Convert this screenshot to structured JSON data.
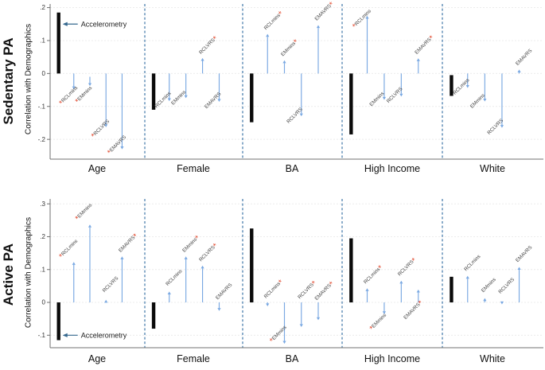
{
  "colors": {
    "arrow": "#79a8e2",
    "accel_bar": "#0a0a0a",
    "star": "#e04428",
    "separator": "#4b7fae",
    "annotation_arrow": "#35688e",
    "axis": "#707070",
    "grid": "#ececec",
    "tick_text": "#333333",
    "label_text": "#444444"
  },
  "chart_data": [
    {
      "type": "range-arrow",
      "row_label": "Sedentary PA",
      "ylabel": "Correlation with Demographics",
      "categories": [
        "Age",
        "Female",
        "BA",
        "High Income",
        "White"
      ],
      "ticks": [
        ".2",
        ".1",
        "0",
        "-.1",
        "-.2"
      ],
      "tick_values": [
        0.2,
        0.1,
        0,
        -0.1,
        -0.2
      ],
      "ylim": [
        0.211,
        -0.26
      ],
      "grid": true,
      "annotation": {
        "text": "Accelerometry",
        "y": 0.15,
        "category": "Age"
      },
      "series_order": [
        "Accelerometry",
        "RCLmins",
        "EMmins",
        "RCLVRS",
        "EMAVRS"
      ],
      "groups": [
        {
          "category": "Age",
          "accelerometry": {
            "from": 0,
            "to": 0.185
          },
          "measures": [
            {
              "name": "RCLmins",
              "from": 0,
              "to": -0.048,
              "sig": true,
              "star": "pre",
              "label_y": -0.095
            },
            {
              "name": "EMmins",
              "from": -0.01,
              "to": -0.038,
              "sig": true,
              "star": "pre",
              "label_y": -0.09
            },
            {
              "name": "RCLVRS",
              "from": 0,
              "to": -0.163,
              "sig": true,
              "star": "pre",
              "label_y": -0.195
            },
            {
              "name": "EMAVRS",
              "from": 0,
              "to": -0.23,
              "sig": true,
              "star": "pre",
              "label_y": -0.245
            }
          ]
        },
        {
          "category": "Female",
          "accelerometry": {
            "from": 0,
            "to": -0.11
          },
          "measures": [
            {
              "name": "RCLmins",
              "from": 0,
              "to": -0.084,
              "sig": false,
              "label_y": -0.105
            },
            {
              "name": "EMmins",
              "from": 0,
              "to": -0.075,
              "sig": false,
              "label_y": -0.096
            },
            {
              "name": "RCLVRS",
              "from": 0,
              "to": 0.047,
              "sig": true,
              "star": "post",
              "label_y": 0.058
            },
            {
              "name": "EMAVRS",
              "from": 0,
              "to": -0.086,
              "sig": false,
              "label_y": -0.107
            }
          ]
        },
        {
          "category": "BA",
          "accelerometry": {
            "from": 0,
            "to": -0.148
          },
          "measures": [
            {
              "name": "RCLmins",
              "from": 0,
              "to": 0.12,
              "sig": true,
              "star": "post",
              "label_y": 0.132
            },
            {
              "name": "EMmins",
              "from": 0,
              "to": 0.04,
              "sig": true,
              "star": "post",
              "label_y": 0.052
            },
            {
              "name": "RCLVRS",
              "from": 0,
              "to": -0.13,
              "sig": false,
              "label_y": -0.152
            },
            {
              "name": "EMAVRS",
              "from": 0,
              "to": 0.147,
              "sig": true,
              "star": "post",
              "label_y": 0.16
            }
          ]
        },
        {
          "category": "High Income",
          "accelerometry": {
            "from": 0,
            "to": -0.185
          },
          "measures": [
            {
              "name": "RCLmins",
              "from": 0,
              "to": 0.175,
              "sig": true,
              "star": "pre",
              "label_y": 0.138
            },
            {
              "name": "EMmins",
              "from": 0,
              "to": -0.08,
              "sig": false,
              "label_y": -0.1
            },
            {
              "name": "RCLVRS",
              "from": 0,
              "to": -0.07,
              "sig": false,
              "label_y": -0.09
            },
            {
              "name": "EMAVRS",
              "from": 0,
              "to": 0.046,
              "sig": true,
              "star": "post",
              "label_y": 0.058
            }
          ]
        },
        {
          "category": "White",
          "accelerometry": {
            "from": -0.005,
            "to": -0.068
          },
          "measures": [
            {
              "name": "RCLmins",
              "from": 0,
              "to": -0.044,
              "sig": false,
              "label_y": -0.065
            },
            {
              "name": "EMmins",
              "from": 0,
              "to": -0.085,
              "sig": false,
              "label_y": -0.106
            },
            {
              "name": "RCLVRS",
              "from": 0,
              "to": -0.165,
              "sig": false,
              "label_y": -0.186
            },
            {
              "name": "EMAVRS",
              "from": 0,
              "to": 0.012,
              "sig": false,
              "label_y": 0.024
            }
          ]
        }
      ]
    },
    {
      "type": "range-arrow",
      "row_label": "Active PA",
      "ylabel": "Correlation with Demographics",
      "categories": [
        "Age",
        "Female",
        "BA",
        "High Income",
        "White"
      ],
      "ticks": [
        ".3",
        ".2",
        ".1",
        "0",
        "-.1"
      ],
      "tick_values": [
        0.3,
        0.2,
        0.1,
        0,
        -0.1
      ],
      "ylim": [
        0.315,
        -0.138
      ],
      "grid": true,
      "annotation": {
        "text": "Accelerometry",
        "y": -0.1,
        "category": "Age"
      },
      "series_order": [
        "Accelerometry",
        "RCLmins",
        "EMmins",
        "RCLVRS",
        "EMAVRS"
      ],
      "groups": [
        {
          "category": "Age",
          "accelerometry": {
            "from": 0,
            "to": -0.115
          },
          "measures": [
            {
              "name": "RCLmins",
              "from": 0,
              "to": 0.123,
              "sig": true,
              "star": "pre",
              "label_y": 0.135
            },
            {
              "name": "EMmins",
              "from": 0,
              "to": 0.237,
              "sig": true,
              "star": "pre",
              "label_y": 0.25
            },
            {
              "name": "RCLVRS",
              "from": 0,
              "to": 0.008,
              "sig": false,
              "label_y": 0.03
            },
            {
              "name": "EMAVRS",
              "from": 0,
              "to": 0.14,
              "sig": true,
              "star": "post",
              "label_y": 0.152
            }
          ]
        },
        {
          "category": "Female",
          "accelerometry": {
            "from": 0,
            "to": -0.08
          },
          "measures": [
            {
              "name": "RCLmins",
              "from": 0,
              "to": 0.033,
              "sig": false,
              "label_y": 0.05
            },
            {
              "name": "EMmins",
              "from": 0,
              "to": 0.14,
              "sig": true,
              "star": "post",
              "label_y": 0.152
            },
            {
              "name": "RCLVRS",
              "from": 0,
              "to": 0.112,
              "sig": true,
              "star": "post",
              "label_y": 0.124
            },
            {
              "name": "EMAVRS",
              "from": 0,
              "to": -0.026,
              "sig": false,
              "label_y": 0.008
            }
          ]
        },
        {
          "category": "BA",
          "accelerometry": {
            "from": 0,
            "to": 0.225
          },
          "measures": [
            {
              "name": "RCLmins",
              "from": 0,
              "to": -0.012,
              "sig": true,
              "star": "post",
              "label_y": 0.012
            },
            {
              "name": "EMmins",
              "from": 0,
              "to": -0.126,
              "sig": true,
              "star": "pre",
              "label_y": -0.122
            },
            {
              "name": "RCLVRS",
              "from": 0,
              "to": -0.075,
              "sig": true,
              "star": "post",
              "label_y": 0.01
            },
            {
              "name": "EMAVRS",
              "from": 0,
              "to": -0.054,
              "sig": true,
              "star": "post",
              "label_y": 0.006
            }
          ]
        },
        {
          "category": "High Income",
          "accelerometry": {
            "from": 0,
            "to": 0.195
          },
          "measures": [
            {
              "name": "RCLmins",
              "from": 0,
              "to": 0.043,
              "sig": true,
              "star": "post",
              "label_y": 0.056
            },
            {
              "name": "EMmins",
              "from": 0,
              "to": -0.036,
              "sig": true,
              "star": "pre",
              "label_y": -0.085
            },
            {
              "name": "RCLVRS",
              "from": 0,
              "to": 0.066,
              "sig": true,
              "star": "post",
              "label_y": 0.08
            },
            {
              "name": "EMAVRS",
              "from": 0,
              "to": 0.039,
              "sig": true,
              "star": "post",
              "label_y": -0.052
            }
          ]
        },
        {
          "category": "White",
          "accelerometry": {
            "from": 0,
            "to": 0.078
          },
          "measures": [
            {
              "name": "RCLmins",
              "from": 0,
              "to": 0.081,
              "sig": false,
              "label_y": 0.095
            },
            {
              "name": "EMmins",
              "from": 0,
              "to": 0.013,
              "sig": false,
              "label_y": 0.03
            },
            {
              "name": "RCLVRS",
              "from": 0,
              "to": -0.006,
              "sig": false,
              "label_y": 0.026
            },
            {
              "name": "EMAVRS",
              "from": 0,
              "to": 0.108,
              "sig": false,
              "label_y": 0.122
            }
          ]
        }
      ]
    }
  ]
}
